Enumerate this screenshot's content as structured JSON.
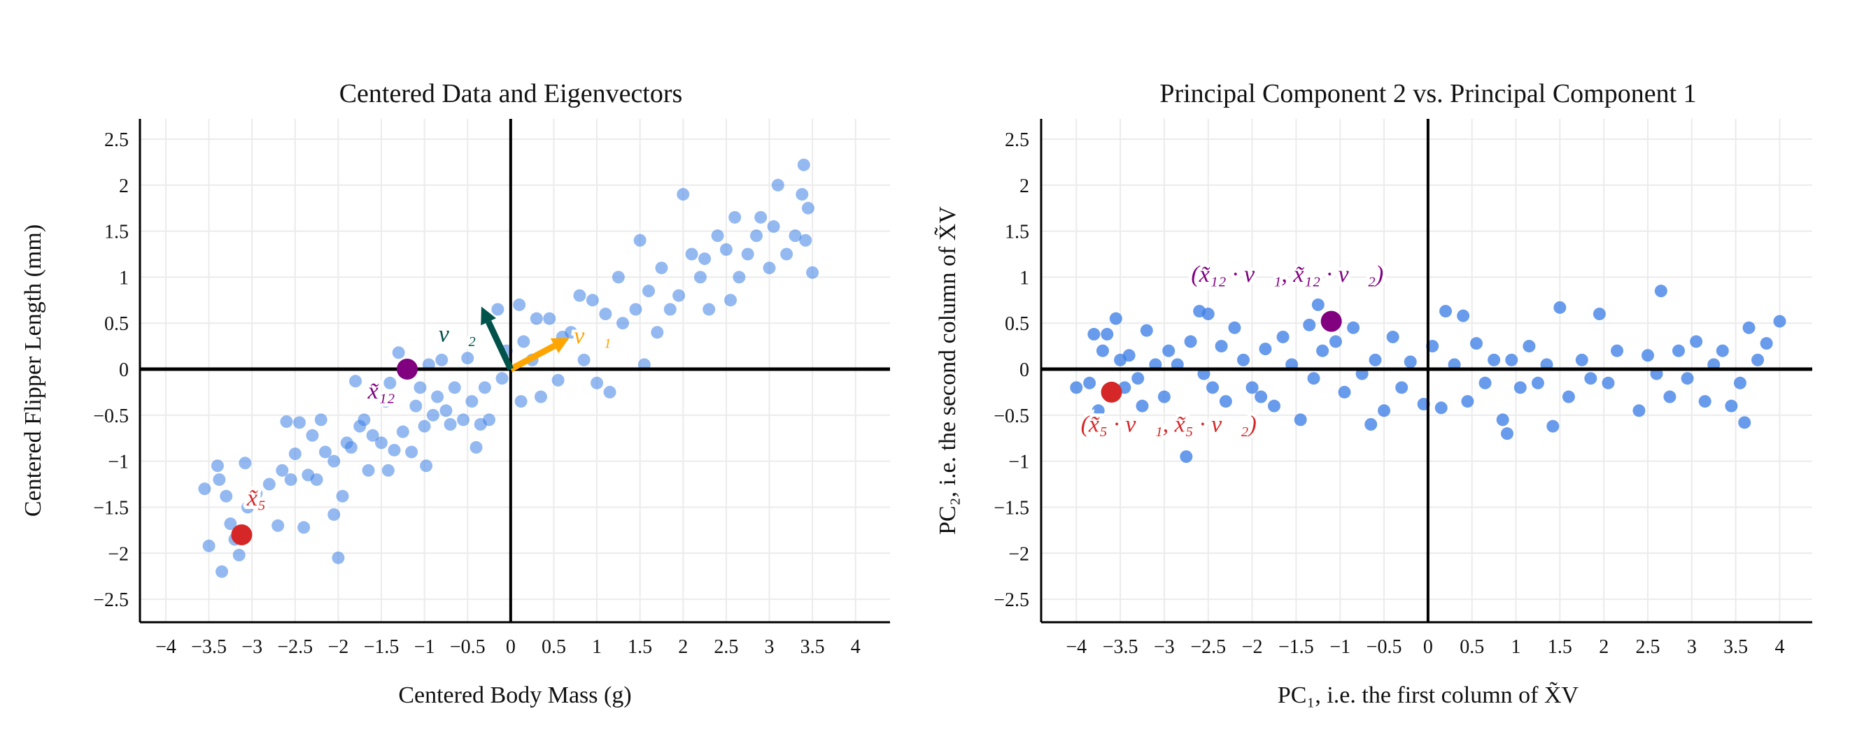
{
  "chart_data": [
    {
      "type": "scatter",
      "title": "Centered Data and Eigenvectors",
      "xlabel": "Centered Body Mass (g)",
      "ylabel": "Centered Flipper Length (mm)",
      "xlim": [
        -4.3,
        4.4
      ],
      "ylim": [
        -2.75,
        2.72
      ],
      "xticks": [
        -4,
        -3.5,
        -3,
        -2.5,
        -2,
        -1.5,
        -1,
        -0.5,
        0,
        0.5,
        1,
        1.5,
        2,
        2.5,
        3,
        3.5,
        4
      ],
      "xtick_labels": [
        "−4",
        "−3.5",
        "−3",
        "−2.5",
        "−2",
        "−1.5",
        "−1",
        "−0.5",
        "0",
        "0.5",
        "1",
        "1.5",
        "2",
        "2.5",
        "3",
        "3.5",
        "4"
      ],
      "yticks": [
        -2.5,
        -2,
        -1.5,
        -1,
        -0.5,
        0,
        0.5,
        1,
        1.5,
        2,
        2.5
      ],
      "ytick_labels": [
        "−2.5",
        "−2",
        "−1.5",
        "−1",
        "−0.5",
        "0",
        "0.5",
        "1",
        "1.5",
        "2",
        "2.5"
      ],
      "grid": true,
      "point_color": "#3d7fe6",
      "points": [
        [
          -3.55,
          -1.3
        ],
        [
          -3.5,
          -1.92
        ],
        [
          -3.4,
          -1.05
        ],
        [
          -3.38,
          -1.2
        ],
        [
          -3.35,
          -2.2
        ],
        [
          -3.3,
          -1.38
        ],
        [
          -3.25,
          -1.68
        ],
        [
          -3.2,
          -1.85
        ],
        [
          -3.15,
          -2.02
        ],
        [
          -3.08,
          -1.02
        ],
        [
          -3.05,
          -1.5
        ],
        [
          -2.95,
          -1.35
        ],
        [
          -2.8,
          -1.25
        ],
        [
          -2.7,
          -1.7
        ],
        [
          -2.65,
          -1.1
        ],
        [
          -2.6,
          -0.57
        ],
        [
          -2.55,
          -1.2
        ],
        [
          -2.5,
          -0.92
        ],
        [
          -2.45,
          -0.58
        ],
        [
          -2.4,
          -1.72
        ],
        [
          -2.35,
          -1.15
        ],
        [
          -2.3,
          -0.72
        ],
        [
          -2.25,
          -1.2
        ],
        [
          -2.2,
          -0.55
        ],
        [
          -2.15,
          -0.9
        ],
        [
          -2.05,
          -1.0
        ],
        [
          -2.05,
          -1.58
        ],
        [
          -2.0,
          -2.05
        ],
        [
          -1.95,
          -1.38
        ],
        [
          -1.9,
          -0.8
        ],
        [
          -1.85,
          -0.85
        ],
        [
          -1.8,
          -0.13
        ],
        [
          -1.75,
          -0.62
        ],
        [
          -1.7,
          -0.55
        ],
        [
          -1.65,
          -1.1
        ],
        [
          -1.6,
          -0.72
        ],
        [
          -1.5,
          -0.8
        ],
        [
          -1.45,
          -0.35
        ],
        [
          -1.42,
          -1.1
        ],
        [
          -1.4,
          -0.15
        ],
        [
          -1.35,
          -0.88
        ],
        [
          -1.3,
          0.18
        ],
        [
          -1.25,
          -0.68
        ],
        [
          -1.15,
          -0.9
        ],
        [
          -1.1,
          -0.4
        ],
        [
          -1.05,
          -0.2
        ],
        [
          -1.0,
          -0.62
        ],
        [
          -0.98,
          -1.05
        ],
        [
          -0.95,
          0.05
        ],
        [
          -0.9,
          -0.5
        ],
        [
          -0.85,
          -0.3
        ],
        [
          -0.8,
          0.1
        ],
        [
          -0.75,
          -0.45
        ],
        [
          -0.7,
          -0.6
        ],
        [
          -0.65,
          -0.2
        ],
        [
          -0.55,
          -0.55
        ],
        [
          -0.5,
          0.12
        ],
        [
          -0.45,
          -0.35
        ],
        [
          -0.4,
          -0.85
        ],
        [
          -0.35,
          -0.6
        ],
        [
          -0.3,
          -0.2
        ],
        [
          -0.25,
          -0.55
        ],
        [
          -0.15,
          0.65
        ],
        [
          -0.1,
          -0.1
        ],
        [
          -0.05,
          0.2
        ],
        [
          0.1,
          0.7
        ],
        [
          0.12,
          -0.35
        ],
        [
          0.15,
          0.3
        ],
        [
          0.25,
          0.1
        ],
        [
          0.3,
          0.55
        ],
        [
          0.35,
          -0.3
        ],
        [
          0.45,
          0.55
        ],
        [
          0.55,
          -0.12
        ],
        [
          0.6,
          0.35
        ],
        [
          0.7,
          0.4
        ],
        [
          0.8,
          0.8
        ],
        [
          0.85,
          0.1
        ],
        [
          0.95,
          0.75
        ],
        [
          1.0,
          -0.15
        ],
        [
          1.1,
          0.6
        ],
        [
          1.15,
          -0.25
        ],
        [
          1.25,
          1.0
        ],
        [
          1.3,
          0.5
        ],
        [
          1.45,
          0.65
        ],
        [
          1.5,
          1.4
        ],
        [
          1.55,
          0.05
        ],
        [
          1.6,
          0.85
        ],
        [
          1.7,
          0.4
        ],
        [
          1.75,
          1.1
        ],
        [
          1.85,
          0.65
        ],
        [
          1.95,
          0.8
        ],
        [
          2.0,
          1.9
        ],
        [
          2.1,
          1.25
        ],
        [
          2.2,
          1.0
        ],
        [
          2.25,
          1.2
        ],
        [
          2.3,
          0.65
        ],
        [
          2.4,
          1.45
        ],
        [
          2.5,
          1.3
        ],
        [
          2.55,
          0.75
        ],
        [
          2.6,
          1.65
        ],
        [
          2.65,
          1.0
        ],
        [
          2.75,
          1.25
        ],
        [
          2.85,
          1.45
        ],
        [
          2.9,
          1.65
        ],
        [
          3.0,
          1.1
        ],
        [
          3.05,
          1.55
        ],
        [
          3.1,
          2.0
        ],
        [
          3.2,
          1.25
        ],
        [
          3.3,
          1.45
        ],
        [
          3.38,
          1.9
        ],
        [
          3.4,
          2.22
        ],
        [
          3.42,
          1.4
        ],
        [
          3.45,
          1.75
        ],
        [
          3.5,
          1.05
        ]
      ],
      "highlights": [
        {
          "label": "x̃₁₂",
          "point": [
            -1.2,
            0.0
          ],
          "color": "#800080",
          "label_at": [
            -1.5,
            -0.32
          ]
        },
        {
          "label": "x̃₅",
          "point": [
            -3.12,
            -1.8
          ],
          "color": "#d62728",
          "label_at": [
            -2.95,
            -1.48
          ]
        }
      ],
      "vectors": [
        {
          "label": "v⃗₁",
          "tip": [
            0.68,
            0.34
          ],
          "color": "#ffa500",
          "label_at": [
            0.95,
            0.28
          ]
        },
        {
          "label": "v⃗₂",
          "tip": [
            -0.34,
            0.68
          ],
          "color": "#00524a",
          "label_at": [
            -0.62,
            0.3
          ]
        }
      ]
    },
    {
      "type": "scatter",
      "title": "Principal Component 2 vs. Principal Component 1",
      "xlabel": "PC₁, i.e. the first column of X̃V",
      "ylabel": "PC₂, i.e. the second column of X̃V",
      "xlim": [
        -4.4,
        4.37
      ],
      "ylim": [
        -2.75,
        2.72
      ],
      "xticks": [
        -4,
        -3.5,
        -3,
        -2.5,
        -2,
        -1.5,
        -1,
        -0.5,
        0,
        0.5,
        1,
        1.5,
        2,
        2.5,
        3,
        3.5,
        4
      ],
      "xtick_labels": [
        "−4",
        "−3.5",
        "−3",
        "−2.5",
        "−2",
        "−1.5",
        "−1",
        "−0.5",
        "0",
        "0.5",
        "1",
        "1.5",
        "2",
        "2.5",
        "3",
        "3.5",
        "4"
      ],
      "yticks": [
        -2.5,
        -2,
        -1.5,
        -1,
        -0.5,
        0,
        0.5,
        1,
        1.5,
        2,
        2.5
      ],
      "ytick_labels": [
        "−2.5",
        "−2",
        "−1.5",
        "−1",
        "−0.5",
        "0",
        "0.5",
        "1",
        "1.5",
        "2",
        "2.5"
      ],
      "grid": true,
      "point_color": "#3d7fe6",
      "points": [
        [
          -4.0,
          -0.2
        ],
        [
          -3.85,
          -0.15
        ],
        [
          -3.8,
          0.38
        ],
        [
          -3.75,
          -0.45
        ],
        [
          -3.7,
          0.2
        ],
        [
          -3.65,
          0.38
        ],
        [
          -3.55,
          0.55
        ],
        [
          -3.5,
          0.1
        ],
        [
          -3.45,
          -0.2
        ],
        [
          -3.4,
          0.15
        ],
        [
          -3.3,
          -0.1
        ],
        [
          -3.25,
          -0.4
        ],
        [
          -3.2,
          0.42
        ],
        [
          -3.1,
          0.05
        ],
        [
          -3.0,
          -0.3
        ],
        [
          -2.95,
          0.2
        ],
        [
          -2.85,
          0.05
        ],
        [
          -2.75,
          -0.95
        ],
        [
          -2.7,
          0.3
        ],
        [
          -2.6,
          0.63
        ],
        [
          -2.55,
          -0.05
        ],
        [
          -2.5,
          0.6
        ],
        [
          -2.45,
          -0.2
        ],
        [
          -2.35,
          0.25
        ],
        [
          -2.3,
          -0.35
        ],
        [
          -2.2,
          0.45
        ],
        [
          -2.1,
          0.1
        ],
        [
          -2.0,
          -0.2
        ],
        [
          -1.9,
          -0.3
        ],
        [
          -1.85,
          0.22
        ],
        [
          -1.75,
          -0.4
        ],
        [
          -1.65,
          0.35
        ],
        [
          -1.55,
          0.05
        ],
        [
          -1.45,
          -0.55
        ],
        [
          -1.35,
          0.48
        ],
        [
          -1.3,
          -0.1
        ],
        [
          -1.25,
          0.7
        ],
        [
          -1.2,
          0.2
        ],
        [
          -1.05,
          0.3
        ],
        [
          -0.95,
          -0.25
        ],
        [
          -0.85,
          0.45
        ],
        [
          -0.75,
          -0.05
        ],
        [
          -0.65,
          -0.6
        ],
        [
          -0.6,
          0.1
        ],
        [
          -0.5,
          -0.45
        ],
        [
          -0.4,
          0.35
        ],
        [
          -0.3,
          -0.2
        ],
        [
          -0.2,
          0.08
        ],
        [
          -0.05,
          -0.38
        ],
        [
          0.05,
          0.25
        ],
        [
          0.15,
          -0.42
        ],
        [
          0.2,
          0.63
        ],
        [
          0.3,
          0.05
        ],
        [
          0.4,
          0.58
        ],
        [
          0.45,
          -0.35
        ],
        [
          0.55,
          0.28
        ],
        [
          0.65,
          -0.15
        ],
        [
          0.75,
          0.1
        ],
        [
          0.85,
          -0.55
        ],
        [
          0.9,
          -0.7
        ],
        [
          0.95,
          0.1
        ],
        [
          1.05,
          -0.2
        ],
        [
          1.15,
          0.25
        ],
        [
          1.25,
          -0.15
        ],
        [
          1.35,
          0.05
        ],
        [
          1.42,
          -0.62
        ],
        [
          1.5,
          0.67
        ],
        [
          1.6,
          -0.3
        ],
        [
          1.75,
          0.1
        ],
        [
          1.85,
          -0.1
        ],
        [
          1.95,
          0.6
        ],
        [
          2.05,
          -0.15
        ],
        [
          2.15,
          0.2
        ],
        [
          2.4,
          -0.45
        ],
        [
          2.5,
          0.15
        ],
        [
          2.6,
          -0.05
        ],
        [
          2.65,
          0.85
        ],
        [
          2.75,
          -0.3
        ],
        [
          2.85,
          0.2
        ],
        [
          2.95,
          -0.1
        ],
        [
          3.05,
          0.3
        ],
        [
          3.15,
          -0.35
        ],
        [
          3.25,
          0.05
        ],
        [
          3.35,
          0.2
        ],
        [
          3.45,
          -0.4
        ],
        [
          3.55,
          -0.15
        ],
        [
          3.6,
          -0.58
        ],
        [
          3.65,
          0.45
        ],
        [
          3.75,
          0.1
        ],
        [
          3.85,
          0.28
        ],
        [
          4.0,
          0.52
        ]
      ],
      "highlights": [
        {
          "label": "(x̃₁₂ · v⃗₁, x̃₁₂ · v⃗₂)",
          "point": [
            -1.1,
            0.52
          ],
          "color": "#800080",
          "label_at": [
            -1.6,
            0.95
          ]
        },
        {
          "label": "(x̃₅ · v⃗₁, x̃₅ · v⃗₂)",
          "point": [
            -3.6,
            -0.25
          ],
          "color": "#d62728",
          "label_at": [
            -2.95,
            -0.68
          ]
        }
      ],
      "vectors": []
    }
  ]
}
